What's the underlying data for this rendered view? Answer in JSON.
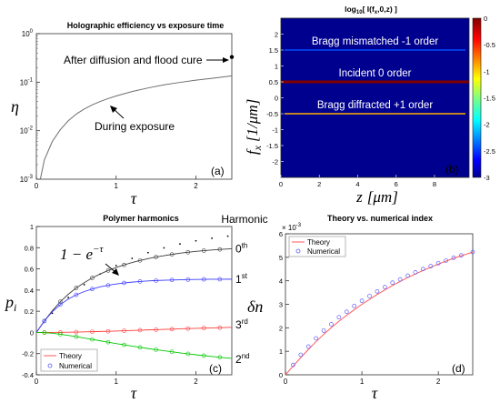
{
  "chart_data": [
    {
      "type": "line",
      "panel_label": "(a)",
      "title": "Holographic efficiency vs exposure time",
      "xlabel": "τ",
      "ylabel": "η",
      "xlim": [
        0,
        2.45
      ],
      "ylim": [
        0.001,
        1
      ],
      "yscale": "log",
      "xticks": [
        "0",
        "1",
        "2"
      ],
      "yticks": [
        {
          "base": "10",
          "exp": "0"
        },
        {
          "base": "10",
          "exp": "-1"
        },
        {
          "base": "10",
          "exp": "-2"
        },
        {
          "base": "10",
          "exp": "-3"
        }
      ],
      "series": [
        {
          "style": "line",
          "color": "#6e6e6e",
          "x": [
            0.05,
            0.1,
            0.2,
            0.3,
            0.4,
            0.5,
            0.6,
            0.7,
            0.8,
            0.9,
            1.0,
            1.2,
            1.4,
            1.6,
            1.8,
            2.0,
            2.2,
            2.45
          ],
          "y": [
            0.001,
            0.0025,
            0.006,
            0.0105,
            0.016,
            0.022,
            0.028,
            0.034,
            0.04,
            0.046,
            0.052,
            0.064,
            0.076,
            0.088,
            0.099,
            0.11,
            0.12,
            0.135
          ]
        },
        {
          "style": "point",
          "color": "#000000",
          "x": [
            2.45
          ],
          "y": [
            0.33
          ]
        }
      ],
      "annotations": [
        {
          "text": "After diffusion and flood cure",
          "arrow": "right"
        },
        {
          "text": "During exposure",
          "arrow": "up-left"
        }
      ],
      "grid": false
    },
    {
      "type": "heatmap",
      "panel_label": "(b)",
      "title": {
        "before": "log",
        "sub1": "10",
        "middle": "[ I(f",
        "sub2": "x",
        "after": ",0,z) ]"
      },
      "xlabel": {
        "main": "z",
        "unit": "[μm]"
      },
      "ylabel": {
        "main": "f",
        "sub": "x",
        "unit": "[1/μm]"
      },
      "xlim": [
        0,
        9.8
      ],
      "ylim": [
        -2.5,
        2.5
      ],
      "xticks": [
        "0",
        "2",
        "4",
        "6",
        "8"
      ],
      "yticks": [
        "2",
        "1.5",
        "1",
        "0.5",
        "0",
        "-0.5",
        "-1",
        "-1.5",
        "-2"
      ],
      "colorbar": {
        "min": -3,
        "max": 0,
        "ticks": [
          "0",
          "-0.5",
          "-1",
          "-1.5",
          "-2",
          "-2.5",
          "-3"
        ],
        "colormap": "jet"
      },
      "bands": [
        {
          "label": "Bragg mismatched -1 order",
          "fx": 1.5,
          "log_intensity": -2.4
        },
        {
          "label": "Incident 0 order",
          "fx": 0.5,
          "log_intensity": 0
        },
        {
          "label": "Bragg diffracted +1 order",
          "fx": -0.5,
          "log_intensity": -0.9
        }
      ]
    },
    {
      "type": "line",
      "panel_label": "(c)",
      "title": "Polymer harmonics",
      "xlabel": "τ",
      "ylabel": {
        "main": "p",
        "sub": "i"
      },
      "xlim": [
        0,
        2.45
      ],
      "ylim": [
        -0.4,
        1.0
      ],
      "xticks": [
        "0",
        "1",
        "2"
      ],
      "yticks": [
        "1",
        "0.8",
        "0.6",
        "0.4",
        "0.2",
        "0",
        "-0.2",
        "-0.4"
      ],
      "legend": {
        "position": "bottom-left",
        "entries": [
          "Theory",
          "Numerical"
        ]
      },
      "annotation": {
        "main": "1 − e",
        "sup": "−τ"
      },
      "harmonic_header": "Harmonic",
      "series": [
        {
          "harmonic": {
            "num": "0",
            "sup": "th"
          },
          "color": "#3c3c3c",
          "x": [
            0,
            0.1,
            0.2,
            0.3,
            0.4,
            0.5,
            0.6,
            0.7,
            0.8,
            0.9,
            1.0,
            1.1,
            1.2,
            1.3,
            1.4,
            1.5,
            1.6,
            1.7,
            1.8,
            1.9,
            2.0,
            2.1,
            2.2,
            2.3,
            2.45
          ],
          "y": [
            0,
            0.108,
            0.205,
            0.29,
            0.36,
            0.42,
            0.47,
            0.515,
            0.552,
            0.585,
            0.613,
            0.638,
            0.66,
            0.68,
            0.697,
            0.712,
            0.725,
            0.737,
            0.748,
            0.757,
            0.765,
            0.772,
            0.778,
            0.784,
            0.79
          ]
        },
        {
          "harmonic": {
            "num": "1",
            "sup": "st"
          },
          "color": "#3a3aff",
          "x": [
            0,
            0.1,
            0.2,
            0.3,
            0.4,
            0.5,
            0.6,
            0.7,
            0.8,
            0.9,
            1.0,
            1.1,
            1.2,
            1.3,
            1.4,
            1.5,
            1.6,
            1.7,
            1.8,
            1.9,
            2.0,
            2.1,
            2.2,
            2.3,
            2.45
          ],
          "y": [
            0,
            0.107,
            0.196,
            0.263,
            0.315,
            0.355,
            0.386,
            0.41,
            0.43,
            0.445,
            0.457,
            0.467,
            0.475,
            0.481,
            0.486,
            0.49,
            0.493,
            0.495,
            0.497,
            0.499,
            0.5,
            0.501,
            0.502,
            0.502,
            0.503
          ]
        },
        {
          "harmonic": {
            "num": "3",
            "sup": "rd"
          },
          "color": "#ff3a3a",
          "x": [
            0,
            0.1,
            0.2,
            0.3,
            0.4,
            0.5,
            0.6,
            0.7,
            0.8,
            0.9,
            1.0,
            1.1,
            1.2,
            1.3,
            1.4,
            1.5,
            1.6,
            1.7,
            1.8,
            1.9,
            2.0,
            2.1,
            2.2,
            2.3,
            2.45
          ],
          "y": [
            0,
            0,
            0,
            0.001,
            0.002,
            0.003,
            0.005,
            0.007,
            0.009,
            0.011,
            0.013,
            0.016,
            0.018,
            0.021,
            0.024,
            0.026,
            0.029,
            0.031,
            0.034,
            0.036,
            0.039,
            0.041,
            0.043,
            0.045,
            0.048
          ]
        },
        {
          "harmonic": {
            "num": "2",
            "sup": "nd"
          },
          "color": "#00c800",
          "x": [
            0,
            0.1,
            0.2,
            0.3,
            0.4,
            0.5,
            0.6,
            0.7,
            0.8,
            0.9,
            1.0,
            1.1,
            1.2,
            1.3,
            1.4,
            1.5,
            1.6,
            1.7,
            1.8,
            1.9,
            2.0,
            2.1,
            2.2,
            2.3,
            2.45
          ],
          "y": [
            0,
            -0.002,
            -0.008,
            -0.017,
            -0.028,
            -0.04,
            -0.053,
            -0.066,
            -0.079,
            -0.092,
            -0.105,
            -0.117,
            -0.129,
            -0.141,
            -0.152,
            -0.163,
            -0.173,
            -0.183,
            -0.193,
            -0.202,
            -0.211,
            -0.219,
            -0.227,
            -0.235,
            -0.245
          ]
        }
      ],
      "dotted_curve": {
        "x": [
          0.2,
          0.4,
          0.6,
          0.8,
          1.0,
          1.2,
          1.4,
          1.6,
          1.8,
          2.0,
          2.2,
          2.4
        ],
        "y": [
          0.181,
          0.33,
          0.451,
          0.551,
          0.632,
          0.699,
          0.753,
          0.798,
          0.835,
          0.865,
          0.889,
          0.909
        ]
      }
    },
    {
      "type": "line",
      "panel_label": "(d)",
      "title": "Theory vs. numerical index",
      "xlabel": "τ",
      "ylabel": "δn",
      "xlim": [
        0,
        2.45
      ],
      "ylim": [
        0,
        6
      ],
      "y_multiplier": {
        "base": "× 10",
        "exp": "-3"
      },
      "xticks": [
        "0",
        "1",
        "2"
      ],
      "yticks": [
        "6",
        "5",
        "4",
        "3",
        "2",
        "1",
        "0"
      ],
      "legend": {
        "position": "top-left",
        "entries": [
          "Theory",
          "Numerical"
        ]
      },
      "series": [
        {
          "name": "Theory",
          "style": "line",
          "color": "#ff5a5a",
          "x": [
            0,
            0.1,
            0.2,
            0.3,
            0.4,
            0.5,
            0.6,
            0.7,
            0.8,
            0.9,
            1.0,
            1.2,
            1.4,
            1.6,
            1.8,
            2.0,
            2.2,
            2.45
          ],
          "y": [
            0,
            0.37,
            0.73,
            1.08,
            1.41,
            1.72,
            2.01,
            2.28,
            2.53,
            2.77,
            3.0,
            3.42,
            3.8,
            4.14,
            4.44,
            4.71,
            4.96,
            5.22
          ]
        },
        {
          "name": "Numerical",
          "style": "marker",
          "color": "#5a5aff",
          "x": [
            0.1,
            0.2,
            0.3,
            0.4,
            0.5,
            0.6,
            0.7,
            0.8,
            0.9,
            1.0,
            1.1,
            1.2,
            1.3,
            1.4,
            1.5,
            1.6,
            1.7,
            1.8,
            1.9,
            2.0,
            2.1,
            2.2,
            2.3,
            2.45
          ],
          "y": [
            0.42,
            0.85,
            1.2,
            1.55,
            1.88,
            2.15,
            2.45,
            2.68,
            2.93,
            3.15,
            3.35,
            3.55,
            3.73,
            3.92,
            4.06,
            4.22,
            4.36,
            4.5,
            4.62,
            4.75,
            4.86,
            4.98,
            5.08,
            5.22
          ]
        }
      ]
    }
  ]
}
